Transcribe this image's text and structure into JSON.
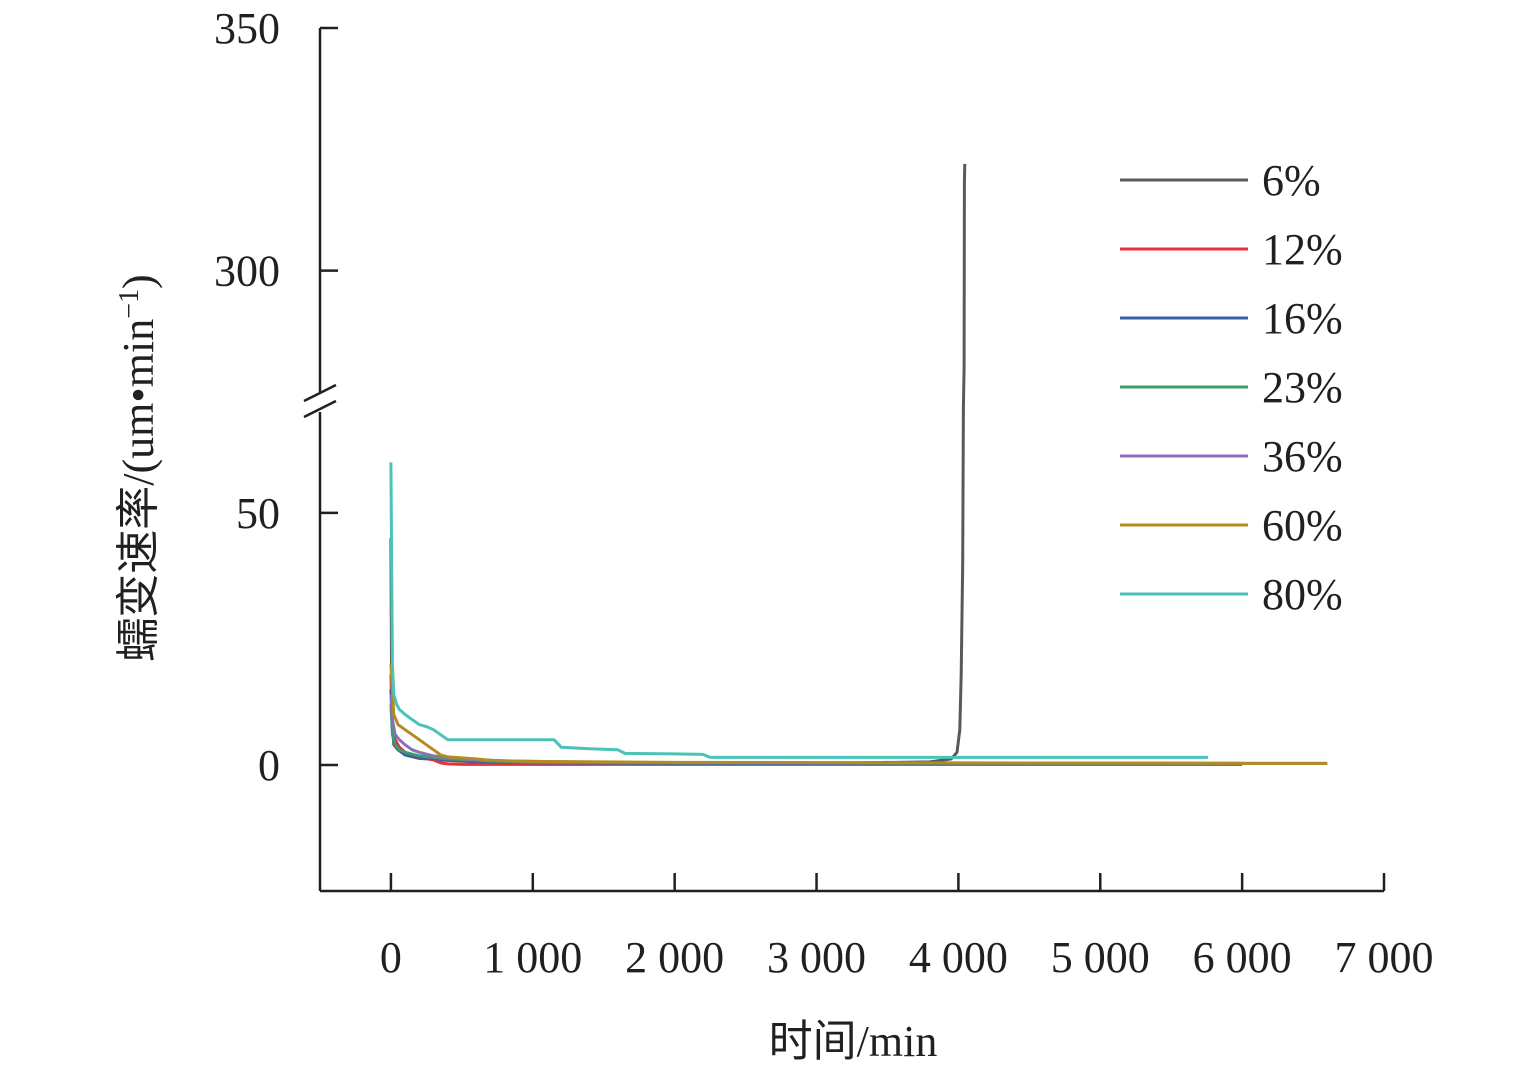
{
  "chart_data": {
    "type": "line",
    "xlabel": "时间/min",
    "ylabel": "蠕变速率/(um•min",
    "ylabel_superscript": "−1",
    "ylabel_close": ")",
    "xlim": [
      -500,
      7000
    ],
    "x_ticks": [
      0,
      1000,
      2000,
      3000,
      4000,
      5000,
      6000,
      7000
    ],
    "x_tick_labels": [
      "0",
      "1 000",
      "2 000",
      "3 000",
      "4 000",
      "5 000",
      "6 000",
      "7 000"
    ],
    "y_axis_broken": true,
    "y_lower_range": [
      -25,
      70
    ],
    "y_upper_range": [
      275,
      350
    ],
    "y_ticks": [
      0,
      50,
      300,
      350
    ],
    "y_tick_labels": [
      "0",
      "50",
      "300",
      "350"
    ],
    "legend_position": "top-right",
    "series": [
      {
        "name": "6%",
        "color": "#595959",
        "x": [
          0,
          5,
          10,
          20,
          50,
          100,
          200,
          400,
          600,
          1000,
          2000,
          3000,
          3800,
          3950,
          3990,
          4010,
          4020,
          4030,
          4035,
          4040,
          4042,
          4045
        ],
        "y": [
          45,
          15,
          8,
          4,
          3,
          2,
          1.3,
          0.9,
          0.6,
          0.4,
          0.3,
          0.3,
          0.6,
          1.2,
          2.5,
          7,
          18,
          40,
          120,
          280,
          318,
          322
        ]
      },
      {
        "name": "12%",
        "color": "#e8303d",
        "x": [
          0,
          10,
          30,
          60,
          100,
          200,
          300,
          350,
          400,
          500,
          1000,
          2000,
          4000,
          6000
        ],
        "y": [
          18,
          8,
          5,
          3.5,
          2.5,
          1.5,
          1,
          0.4,
          0.2,
          0.1,
          0.1,
          0.1,
          0.1,
          0.1
        ]
      },
      {
        "name": "16%",
        "color": "#3a5ea8",
        "x": [
          0,
          10,
          30,
          60,
          100,
          200,
          400,
          700,
          1000,
          2000,
          4000,
          6000
        ],
        "y": [
          15,
          7,
          4,
          3,
          2,
          1.5,
          1,
          0.6,
          0.4,
          0.3,
          0.2,
          0.2
        ]
      },
      {
        "name": "23%",
        "color": "#3e9e6a",
        "x": [
          0,
          10,
          30,
          60,
          100,
          200,
          400,
          700,
          1000,
          2000,
          4000,
          6000,
          6600
        ],
        "y": [
          12,
          6,
          4,
          3,
          2.5,
          1.8,
          1.2,
          0.8,
          0.5,
          0.4,
          0.3,
          0.3,
          0.3
        ]
      },
      {
        "name": "36%",
        "color": "#8b6fb8",
        "x": [
          0,
          10,
          30,
          60,
          100,
          150,
          200,
          300,
          500,
          800,
          1500,
          3000,
          6000
        ],
        "y": [
          14,
          9,
          6,
          5,
          4,
          3,
          2.5,
          1.8,
          1.2,
          0.8,
          0.5,
          0.4,
          0.3
        ]
      },
      {
        "name": "60%",
        "color": "#b28b22",
        "x": [
          0,
          20,
          50,
          100,
          150,
          200,
          250,
          300,
          350,
          400,
          500,
          600,
          700,
          1000,
          2000,
          4000,
          6600
        ],
        "y": [
          20,
          10,
          8,
          7,
          6,
          5,
          4,
          3,
          2,
          1.6,
          1.4,
          1.2,
          0.9,
          0.7,
          0.5,
          0.4,
          0.3
        ]
      },
      {
        "name": "80%",
        "color": "#4cc3b8",
        "x": [
          0,
          10,
          20,
          40,
          60,
          100,
          150,
          200,
          260,
          300,
          350,
          400,
          600,
          900,
          1150,
          1200,
          1400,
          1600,
          1650,
          2000,
          2200,
          2250,
          3000,
          4000,
          5000,
          5760
        ],
        "y": [
          60,
          20,
          14,
          12,
          11,
          10,
          9,
          8,
          7.5,
          7,
          6,
          5,
          5,
          5,
          5,
          3.5,
          3.2,
          3,
          2.3,
          2.2,
          2.1,
          1.5,
          1.5,
          1.5,
          1.5,
          1.5
        ]
      }
    ]
  }
}
